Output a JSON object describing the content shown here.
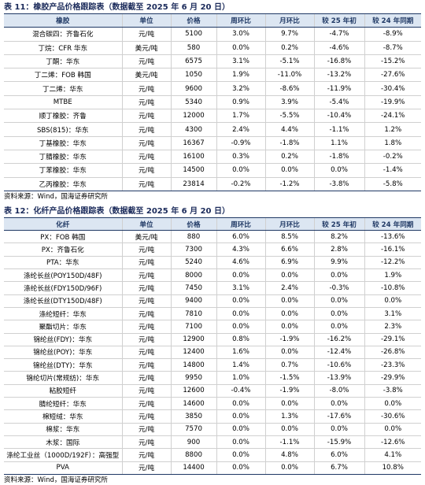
{
  "tables": [
    {
      "title": "表 11：橡胶产品价格跟踪表（数据截至 2025 年 6 月 20 日）",
      "header": [
        "橡胶",
        "单位",
        "价格",
        "周环比",
        "月环比",
        "较 25 年初",
        "较 24 年同期"
      ],
      "rows": [
        [
          "混合碳四：齐鲁石化",
          "元/吨",
          "5100",
          "3.0%",
          "9.7%",
          "-4.7%",
          "-8.9%"
        ],
        [
          "丁烷：CFR 华东",
          "美元/吨",
          "580",
          "0.0%",
          "0.2%",
          "-4.6%",
          "-8.7%"
        ],
        [
          "丁酮：华东",
          "元/吨",
          "6575",
          "3.1%",
          "-5.1%",
          "-16.8%",
          "-15.2%"
        ],
        [
          "丁二烯：FOB 韩国",
          "美元/吨",
          "1050",
          "1.9%",
          "-11.0%",
          "-13.2%",
          "-27.6%"
        ],
        [
          "丁二烯：华东",
          "元/吨",
          "9600",
          "3.2%",
          "-8.6%",
          "-11.9%",
          "-30.4%"
        ],
        [
          "MTBE",
          "元/吨",
          "5340",
          "0.9%",
          "3.9%",
          "-5.4%",
          "-19.9%"
        ],
        [
          "顺丁橡胶：齐鲁",
          "元/吨",
          "12000",
          "1.7%",
          "-5.5%",
          "-10.4%",
          "-24.1%"
        ],
        [
          "SBS(815)：华东",
          "元/吨",
          "4300",
          "2.4%",
          "4.4%",
          "-1.1%",
          "1.2%"
        ],
        [
          "丁基橡胶：华东",
          "元/吨",
          "16367",
          "-0.9%",
          "-1.8%",
          "1.1%",
          "1.8%"
        ],
        [
          "丁腈橡胶：华东",
          "元/吨",
          "16100",
          "0.3%",
          "0.2%",
          "-1.8%",
          "-0.2%"
        ],
        [
          "丁苯橡胶：华东",
          "元/吨",
          "14500",
          "0.0%",
          "0.0%",
          "0.0%",
          "-1.4%"
        ],
        [
          "乙丙橡胶：华东",
          "元/吨",
          "23814",
          "-0.2%",
          "-1.2%",
          "-3.8%",
          "-5.8%"
        ]
      ],
      "source": "资料来源：Wind，国海证券研究所"
    },
    {
      "title": "表 12：化纤产品价格跟踪表（数据截至 2025 年 6 月 20 日）",
      "header": [
        "化纤",
        "单位",
        "价格",
        "周环比",
        "月环比",
        "较 25 年初",
        "较 24 年同期"
      ],
      "rows": [
        [
          "PX：FOB 韩国",
          "美元/吨",
          "880",
          "6.0%",
          "8.5%",
          "8.2%",
          "-13.6%"
        ],
        [
          "PX：齐鲁石化",
          "元/吨",
          "7300",
          "4.3%",
          "6.6%",
          "2.8%",
          "-16.1%"
        ],
        [
          "PTA：华东",
          "元/吨",
          "5240",
          "4.6%",
          "6.9%",
          "9.9%",
          "-12.2%"
        ],
        [
          "涤纶长丝(POY150D/48F)",
          "元/吨",
          "8000",
          "0.0%",
          "0.0%",
          "0.0%",
          "1.9%"
        ],
        [
          "涤纶长丝(FDY150D/96F)",
          "元/吨",
          "7450",
          "3.1%",
          "2.4%",
          "-0.3%",
          "-10.8%"
        ],
        [
          "涤纶长丝(DTY150D/48F)",
          "元/吨",
          "9400",
          "0.0%",
          "0.0%",
          "0.0%",
          "0.0%"
        ],
        [
          "涤纶短纤：华东",
          "元/吨",
          "7810",
          "0.0%",
          "0.0%",
          "0.0%",
          "3.1%"
        ],
        [
          "聚酯切片：华东",
          "元/吨",
          "7100",
          "0.0%",
          "0.0%",
          "0.0%",
          "2.3%"
        ],
        [
          "锦纶丝(FDY)：华东",
          "元/吨",
          "12900",
          "0.8%",
          "-1.9%",
          "-16.2%",
          "-29.1%"
        ],
        [
          "锦纶丝(POY)：华东",
          "元/吨",
          "12400",
          "1.6%",
          "0.0%",
          "-12.4%",
          "-26.8%"
        ],
        [
          "锦纶丝(DTY)：华东",
          "元/吨",
          "14800",
          "1.4%",
          "0.7%",
          "-10.6%",
          "-23.3%"
        ],
        [
          "锦纶切片(常规纺)：华东",
          "元/吨",
          "9950",
          "1.0%",
          "-1.5%",
          "-13.9%",
          "-29.9%"
        ],
        [
          "粘胶短纤",
          "元/吨",
          "12600",
          "-0.4%",
          "-1.9%",
          "-8.0%",
          "-3.8%"
        ],
        [
          "腈纶短纤：华东",
          "元/吨",
          "14600",
          "0.0%",
          "0.0%",
          "0.0%",
          "0.0%"
        ],
        [
          "棉短绒：华东",
          "元/吨",
          "3850",
          "0.0%",
          "1.3%",
          "-17.6%",
          "-30.6%"
        ],
        [
          "棉浆：华东",
          "元/吨",
          "7570",
          "0.0%",
          "0.0%",
          "0.0%",
          "0.0%"
        ],
        [
          "木浆：国际",
          "元/吨",
          "900",
          "0.0%",
          "-1.1%",
          "-15.9%",
          "-12.6%"
        ],
        [
          "涤纶工业丝（1000D/192F）：高强型",
          "元/吨",
          "8800",
          "0.0%",
          "4.8%",
          "6.0%",
          "4.1%"
        ],
        [
          "PVA",
          "元/吨",
          "14400",
          "0.0%",
          "0.0%",
          "6.7%",
          "10.8%"
        ]
      ],
      "source": "资料来源：Wind，国海证券研究所"
    }
  ]
}
